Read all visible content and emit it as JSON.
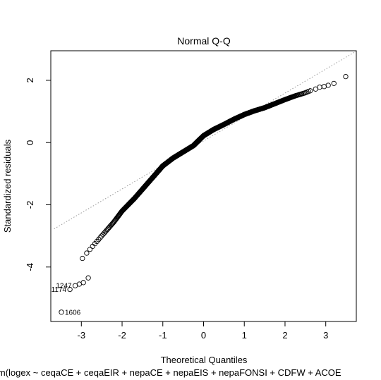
{
  "chart_data": {
    "type": "scatter",
    "title": "Normal Q-Q",
    "xlabel": "Theoretical Quantiles",
    "ylabel": "Standardized residuals",
    "subtitle": "lm(logex ~ ceqaCE + ceqaEIR + nepaCE + nepaEIS + nepaFONSI + CDFW + ACOE",
    "xlim": [
      -3.75,
      3.75
    ],
    "ylim": [
      -5.75,
      2.95
    ],
    "x_ticks": [
      -3,
      -2,
      -1,
      0,
      1,
      2,
      3
    ],
    "y_ticks": [
      -4,
      -2,
      0,
      2
    ],
    "grid": false,
    "reference_line": {
      "slope": 0.77,
      "intercept": 0.05,
      "style": "dotted",
      "color": "#9a9a9a"
    },
    "curve_knots": [
      [
        -3.05,
        -3.85
      ],
      [
        -2.9,
        -3.6
      ],
      [
        -2.7,
        -3.3
      ],
      [
        -2.5,
        -3.0
      ],
      [
        -2.2,
        -2.55
      ],
      [
        -2.0,
        -2.2
      ],
      [
        -1.7,
        -1.8
      ],
      [
        -1.5,
        -1.5
      ],
      [
        -1.2,
        -1.05
      ],
      [
        -1.0,
        -0.75
      ],
      [
        -0.75,
        -0.5
      ],
      [
        -0.5,
        -0.3
      ],
      [
        -0.25,
        -0.1
      ],
      [
        0.0,
        0.22
      ],
      [
        0.25,
        0.42
      ],
      [
        0.5,
        0.58
      ],
      [
        0.75,
        0.75
      ],
      [
        1.0,
        0.9
      ],
      [
        1.25,
        1.02
      ],
      [
        1.5,
        1.12
      ],
      [
        1.75,
        1.25
      ],
      [
        2.0,
        1.38
      ],
      [
        2.25,
        1.5
      ],
      [
        2.5,
        1.6
      ],
      [
        2.65,
        1.68
      ]
    ],
    "points_count": 1700,
    "extreme_points": [
      {
        "x": -3.49,
        "y": -5.45,
        "label": "1606"
      },
      {
        "x": -3.28,
        "y": -4.72,
        "label": "1174"
      },
      {
        "x": -3.15,
        "y": -4.6,
        "label": "1247"
      },
      {
        "x": -3.05,
        "y": -4.55,
        "label": ""
      },
      {
        "x": -2.95,
        "y": -4.5,
        "label": ""
      },
      {
        "x": -2.83,
        "y": -4.35,
        "label": ""
      },
      {
        "x": 2.75,
        "y": 1.72,
        "label": ""
      },
      {
        "x": 2.85,
        "y": 1.78,
        "label": ""
      },
      {
        "x": 2.96,
        "y": 1.8,
        "label": ""
      },
      {
        "x": 3.06,
        "y": 1.84,
        "label": ""
      },
      {
        "x": 3.2,
        "y": 1.9,
        "label": ""
      },
      {
        "x": 3.49,
        "y": 2.12,
        "label": ""
      }
    ]
  }
}
